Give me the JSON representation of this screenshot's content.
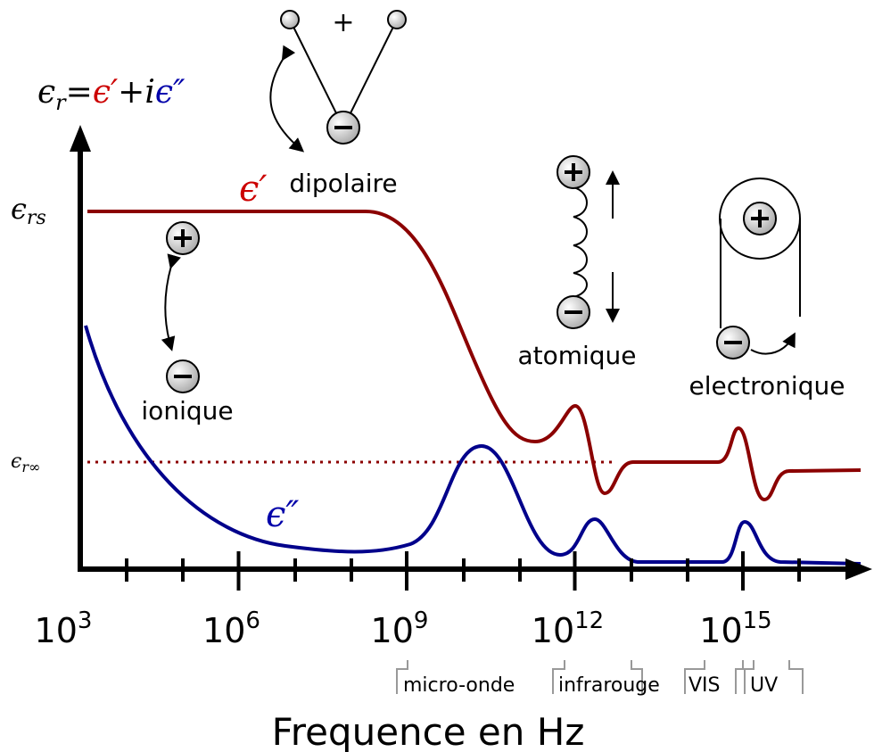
{
  "equation": {
    "lhs": "ϵ",
    "lhs_sub": "r",
    "eq": "=",
    "real": "ϵ′",
    "plus": "+",
    "i": "i",
    "imag": "ϵ″"
  },
  "y_labels": {
    "static": {
      "symbol": "ϵ",
      "sub": "rs"
    },
    "infinite": {
      "symbol": "ϵ",
      "sub": "r∞"
    }
  },
  "curve_labels": {
    "real": "ϵ′",
    "imag": "ϵ″"
  },
  "dipole_sign": "+",
  "mechanisms": {
    "dipolar": "dipolaire",
    "ionic": "ionique",
    "atomic": "atomique",
    "electronic": "electronique"
  },
  "x_ticks": [
    {
      "base": "10",
      "exp": "3"
    },
    {
      "base": "10",
      "exp": "6"
    },
    {
      "base": "10",
      "exp": "9"
    },
    {
      "base": "10",
      "exp": "12"
    },
    {
      "base": "10",
      "exp": "15"
    }
  ],
  "bands": [
    "micro-onde",
    "infrarouge",
    "VIS",
    "UV"
  ],
  "x_axis_title": "Frequence en Hz"
}
